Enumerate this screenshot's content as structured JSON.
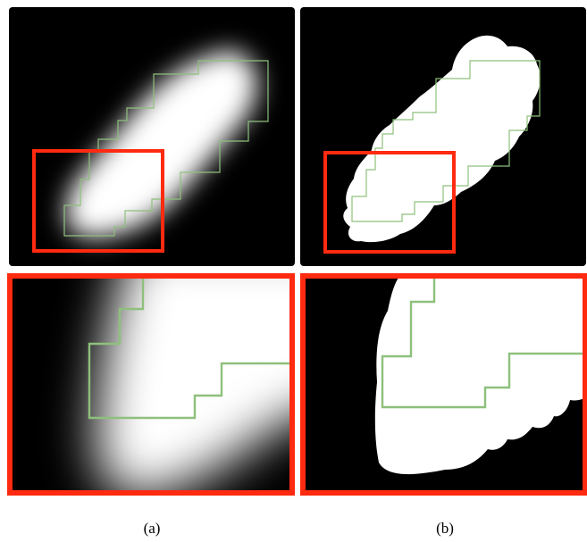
{
  "figure": {
    "captions": [
      "(a)",
      "(b)"
    ],
    "colors": {
      "background": "#000000",
      "highlight_box": "#ff2a10",
      "contour": "#8ec07c",
      "mask_fill": "#ffffff"
    }
  }
}
